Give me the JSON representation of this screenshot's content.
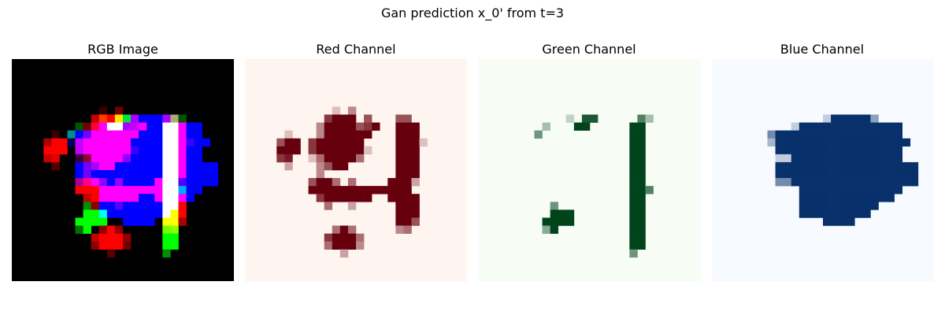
{
  "figure": {
    "suptitle": "Gan prediction x_0' from t=3"
  },
  "chart_data": {
    "type": "heatmap",
    "title": "Gan prediction x_0' from t=3",
    "grid_size": 28,
    "axes_visible": false,
    "panels": [
      {
        "title": "RGB Image",
        "channel": "rgb",
        "colormap": "rgb"
      },
      {
        "title": "Red Channel",
        "channel": "r",
        "colormap": "Reds",
        "low_color": "#fff5f0",
        "high_color": "#67000d"
      },
      {
        "title": "Green Channel",
        "channel": "g",
        "colormap": "Greens",
        "low_color": "#f7fcf5",
        "high_color": "#00441b"
      },
      {
        "title": "Blue Channel",
        "channel": "b",
        "colormap": "Blues",
        "low_color": "#f7fbff",
        "high_color": "#08306b"
      }
    ],
    "channels": {
      "r": [
        "............................",
        "............................",
        "............................",
        "............................",
        "............................",
        "............................",
        "...........2.4..............",
        "..........7999.6...66.......",
        ".........49999679..999......",
        ".....2...4999999...999......",
        "....699.7999999....9992.....",
        "....999.79999992...999......",
        "....78..2599995....999......",
        ".....3...4699......999......",
        ".........4.........999......",
        "........6995.5....9993......",
        "........9999999999999.......",
        ".........7999999..9999......",
        "..........5..3.....999......",
        "...................999......",
        "...................996......",
        "...........595.....45.......",
        "..........79995.............",
        "..........59994.............",
        "............3...............",
        "............................",
        "............................",
        "............................"
      ],
      "g": [
        "............................",
        "............................",
        "............................",
        "............................",
        "............................",
        "............................",
        "............................",
        "...........2.88.....63......",
        "........3...99.....99.......",
        ".......5...........99.......",
        "...................99.......",
        "...................99.......",
        "...................99.......",
        "...................99.......",
        "...................99.......",
        "...................99.......",
        "...................996......",
        "...................99.......",
        ".........5.........99.......",
        ".........999.......99.......",
        "........9999.......99.......",
        "........49.........99.......",
        "...................99.......",
        "...................99.......",
        "...................5........",
        "............................",
        "............................",
        "............................"
      ],
      "b": [
        "............................",
        "............................",
        "............................",
        "............................",
        "............................",
        "............................",
        "............................",
        "..............2999994.......",
        "..........29999999999999....",
        ".......59999999999999999....",
        ".......399999999999999999...",
        "........9999999999999999....",
        "........2299999999999999....",
        "........999999999999999999..",
        "........999999999999999999..",
        "........559999999999999999..",
        "...........9999999999999....",
        "...........999999999999.....",
        "...........9999999999.......",
        "...........999999999........",
        "..............9999..........",
        "............................",
        "............................",
        "............................",
        "............................",
        "............................",
        "............................",
        "............................"
      ]
    }
  }
}
